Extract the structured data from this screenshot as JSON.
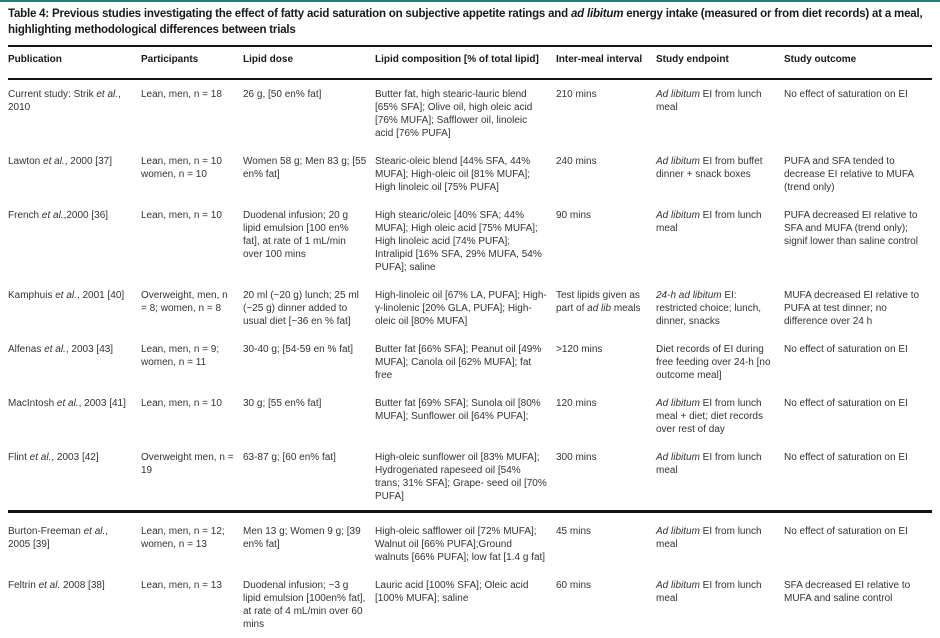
{
  "colors": {
    "accent_top_rule": "#2b7f77",
    "rule": "#161314",
    "text": "#312d2e"
  },
  "caption": "Table 4: Previous studies investigating the effect of fatty acid saturation on subjective appetite ratings and *ad libitum* energy intake (measured or from diet records) at a meal, highlighting methodological differences between trials",
  "table": {
    "columns": [
      {
        "key": "publication",
        "label": "Publication"
      },
      {
        "key": "participants",
        "label": "Participants"
      },
      {
        "key": "lipid_dose",
        "label": "Lipid dose"
      },
      {
        "key": "lipid_composition",
        "label": "Lipid composition [% of total lipid]"
      },
      {
        "key": "inter_meal_interval",
        "label": "Inter-meal interval"
      },
      {
        "key": "study_endpoint",
        "label": "Study endpoint"
      },
      {
        "key": "study_outcome",
        "label": "Study outcome"
      }
    ],
    "rows": [
      {
        "publication": "Current study: Strik *et al.*, 2010",
        "participants": "Lean, men, n = 18",
        "lipid_dose": "26 g, [50 en% fat]",
        "lipid_composition": "Butter fat, high stearic-lauric blend [65% SFA]; Olive oil, high oleic acid [76% MUFA]; Safflower oil, linoleic acid [76% PUFA]",
        "inter_meal_interval": "210 mins",
        "study_endpoint": "*Ad libitum* EI from lunch meal",
        "study_outcome": "No effect of saturation on EI",
        "section_break_before": false
      },
      {
        "publication": "Lawton *et al.*, 2000 [37]",
        "participants": "Lean, men, n = 10 women, n = 10",
        "lipid_dose": "Women 58 g; Men 83 g; [55 en% fat]",
        "lipid_composition": "Stearic-oleic blend [44% SFA, 44% MUFA]; High-oleic oil [81% MUFA]; High linoleic oil [75% PUFA]",
        "inter_meal_interval": "240 mins",
        "study_endpoint": "*Ad libitum* EI from buffet dinner + snack boxes",
        "study_outcome": "PUFA and SFA tended to decrease EI relative to MUFA (trend only)",
        "section_break_before": false
      },
      {
        "publication": "French *et al.*,2000 [36]",
        "participants": "Lean, men, n = 10",
        "lipid_dose": "Duodenal infusion; 20 g lipid emulsion [100 en% fat], at rate of 1 mL/min over 100 mins",
        "lipid_composition": "High stearic/oleic [40% SFA; 44% MUFA]; High oleic acid [75% MUFA]; High linoleic acid [74% PUFA]; Intralipid [16% SFA, 29% MUFA, 54% PUFA]; saline",
        "inter_meal_interval": "90 mins",
        "study_endpoint": "*Ad libitum* EI from lunch meal",
        "study_outcome": "PUFA decreased EI relative to SFA and MUFA (trend only); signif lower than saline control",
        "section_break_before": false
      },
      {
        "publication": "Kamphuis *et al.*, 2001 [40]",
        "participants": "Overweight, men, n = 8; women, n = 8",
        "lipid_dose": "20 ml (~20 g) lunch; 25 ml (~25 g) dinner added to usual diet [~36 en % fat]",
        "lipid_composition": "High-linoleic oil [67% LA, PUFA]; High-γ-linolenic [20% GLA, PUFA]; High-oleic oil [80% MUFA]",
        "inter_meal_interval": "Test lipids given as part of *ad lib* meals",
        "study_endpoint": "*24-h ad libitum* EI: restricted choice; lunch, dinner, snacks",
        "study_outcome": "MUFA decreased EI relative to PUFA at test dinner; no difference over 24 h",
        "section_break_before": false
      },
      {
        "publication": "Alfenas *et al.*, 2003 [43]",
        "participants": "Lean, men, n = 9; women, n = 11",
        "lipid_dose": "30-40 g; [54-59 en % fat]",
        "lipid_composition": "Butter fat [66% SFA]; Peanut oil [49% MUFA]; Canola oil [62% MUFA]; fat free",
        "inter_meal_interval": ">120 mins",
        "study_endpoint": "Diet records of EI during free feeding over 24-h [no outcome meal]",
        "study_outcome": "No effect of saturation on EI",
        "section_break_before": false
      },
      {
        "publication": "MacIntosh *et al.*, 2003 [41]",
        "participants": "Lean, men, n = 10",
        "lipid_dose": "30 g; [55 en% fat]",
        "lipid_composition": "Butter fat [69% SFA]; Sunola oil [80% MUFA]; Sunflower oil [64% PUFA];",
        "inter_meal_interval": "120 mins",
        "study_endpoint": "*Ad libitum* EI from lunch meal + diet; diet records over rest of day",
        "study_outcome": "No effect of saturation on EI",
        "section_break_before": false
      },
      {
        "publication": "Flint *et al.*, 2003 [42]",
        "participants": "Overweight men, n = 19",
        "lipid_dose": "63-87 g; [60 en% fat]",
        "lipid_composition": "High-oleic sunflower oil [83% MUFA]; Hydrogenated rapeseed oil [54% trans; 31% SFA]; Grape- seed oil [70% PUFA]",
        "inter_meal_interval": "300 mins",
        "study_endpoint": "*Ad libitum* EI from lunch meal",
        "study_outcome": "No effect of saturation on EI",
        "section_break_before": false
      },
      {
        "publication": "Burton-Freeman *et al.*, 2005 [39]",
        "participants": "Lean, men, n = 12; women, n = 13",
        "lipid_dose": "Men 13 g; Women 9 g; [39 en% fat]",
        "lipid_composition": "High-oleic safflower oil [72% MUFA]; Walnut oil [66% PUFA];Ground walnuts [66% PUFA]; low fat [1.4 g fat]",
        "inter_meal_interval": "45 mins",
        "study_endpoint": "*Ad libitum* EI from lunch meal",
        "study_outcome": "No effect of saturation on EI",
        "section_break_before": true
      },
      {
        "publication": "Feltrin *et al.* 2008 [38]",
        "participants": "Lean, men, n = 13",
        "lipid_dose": "Duodenal infusion; ~3 g lipid emulsion [100en% fat], at rate of 4 mL/min over 60 mins",
        "lipid_composition": "Lauric acid [100% SFA]; Oleic acid [100% MUFA]; saline",
        "inter_meal_interval": "60 mins",
        "study_endpoint": "*Ad libitum* EI from lunch meal",
        "study_outcome": "SFA decreased EI relative to MUFA and saline control",
        "section_break_before": false
      }
    ]
  }
}
